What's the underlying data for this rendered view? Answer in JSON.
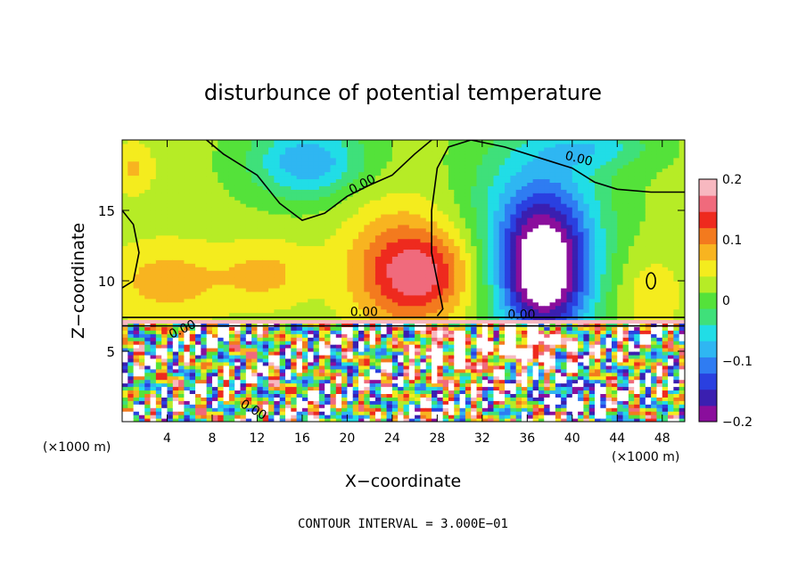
{
  "chart_data": {
    "type": "heatmap",
    "title": "disturbunce of potential temperature",
    "xlabel": "X−coordinate",
    "ylabel": "Z−coordinate",
    "x_unit": "(×1000 m)",
    "x_unit_right": "(×1000 m)",
    "xlim": [
      0,
      50
    ],
    "ylim": [
      0,
      20
    ],
    "xticks": [
      4,
      8,
      12,
      16,
      20,
      24,
      28,
      32,
      36,
      40,
      44,
      48
    ],
    "yticks": [
      5,
      10,
      15
    ],
    "colorbar": {
      "min": -0.2,
      "max": 0.2,
      "ticks": [
        0.2,
        0.1,
        0,
        -0.1,
        -0.2
      ],
      "tick_labels": [
        "0.2",
        "0.1",
        "0",
        "−0.1",
        "−0.2"
      ]
    },
    "contour_labels": [
      "0.00",
      "0.00",
      "0.00",
      "0.00",
      "0.00",
      "0.00"
    ],
    "footer": "CONTOUR INTERVAL = 3.000E−01"
  }
}
